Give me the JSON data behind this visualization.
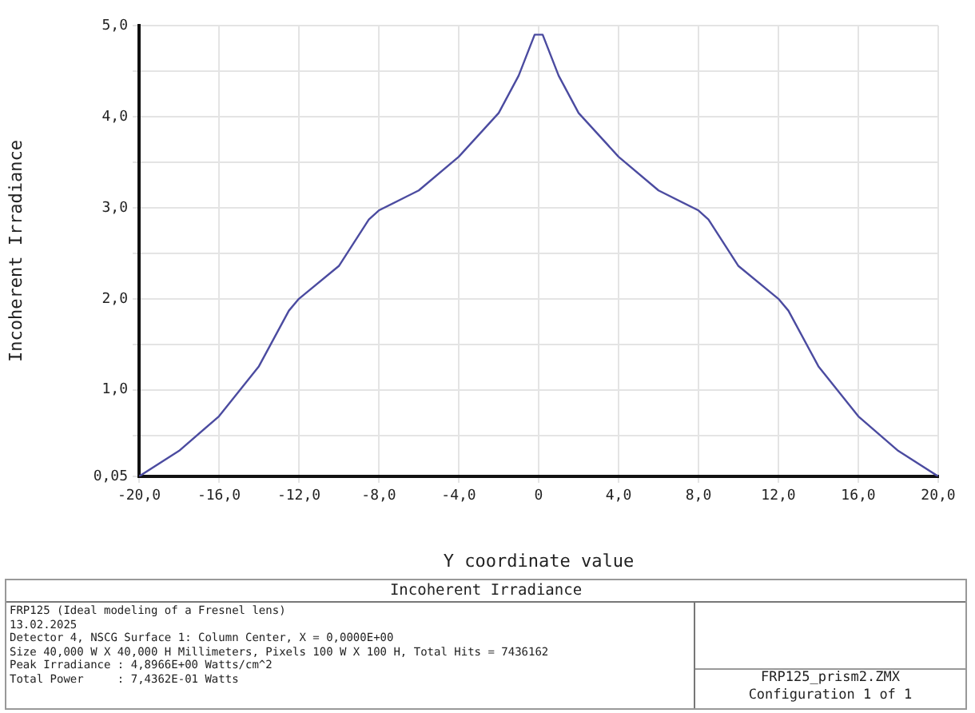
{
  "chart_data": {
    "type": "line",
    "title": "Incoherent Irradiance",
    "xlabel": "Y coordinate value",
    "ylabel": "Incoherent Irradiance",
    "x": [
      -20,
      -18,
      -16,
      -14,
      -12.5,
      -12,
      -10,
      -8.5,
      -8,
      -6,
      -4,
      -2,
      -1,
      -0.2,
      0.2,
      1,
      2,
      4,
      6,
      8,
      8.5,
      10,
      12,
      12.5,
      14,
      16,
      18,
      20
    ],
    "series": [
      {
        "color": "#4b4ba0",
        "values": [
          0.05,
          0.33,
          0.71,
          1.26,
          1.87,
          2.0,
          2.36,
          2.87,
          2.97,
          3.19,
          3.56,
          4.04,
          4.45,
          4.9,
          4.9,
          4.45,
          4.04,
          3.56,
          3.19,
          2.97,
          2.87,
          2.36,
          2.0,
          1.87,
          1.26,
          0.71,
          0.33,
          0.05
        ]
      }
    ],
    "xlim": [
      -20,
      20
    ],
    "xticks": [
      {
        "value": -20,
        "label": "-20,0"
      },
      {
        "value": -16,
        "label": "-16,0"
      },
      {
        "value": -12,
        "label": "-12,0"
      },
      {
        "value": -8,
        "label": "-8,0"
      },
      {
        "value": -4,
        "label": "-4,0"
      },
      0,
      {
        "value": 4,
        "label": "4,0"
      },
      {
        "value": 8,
        "label": "8,0"
      },
      {
        "value": 12,
        "label": "12,0"
      },
      {
        "value": 16,
        "label": "16,0"
      },
      {
        "value": 20,
        "label": "20,0"
      }
    ],
    "ylim": [
      0.05,
      5
    ],
    "yticks": [
      {
        "value": 0.05,
        "label": "0,05"
      },
      {
        "value": 0.5,
        "label": null
      },
      {
        "value": 1,
        "label": "1,0"
      },
      {
        "value": 1.5,
        "label": null
      },
      {
        "value": 2,
        "label": "2,0"
      },
      {
        "value": 2.5,
        "label": null
      },
      {
        "value": 3,
        "label": "3,0"
      },
      {
        "value": 3.5,
        "label": null
      },
      {
        "value": 4,
        "label": "4,0"
      },
      {
        "value": 4.5,
        "label": null
      },
      {
        "value": 5,
        "label": "5,0"
      }
    ],
    "grid": true,
    "legend": false,
    "marker": "none",
    "line_style": "solid",
    "annotations": [
      "FRP125 (Ideal modeling of a Fresnel lens)",
      "13.02.2025",
      "Detector 4, NSCG Surface 1: Column Center, X = 0,0000E+00",
      "Size 40,000 W X 40,000 H Millimeters, Pixels 100 W X 100 H, Total Hits = 7436162",
      "Peak Irradiance : 4,8966E+00 Watts/cm^2",
      "Total Power     : 7,4362E-01 Watts",
      "FRP125_prism2.ZMX",
      "Configuration 1 of 1"
    ]
  }
}
